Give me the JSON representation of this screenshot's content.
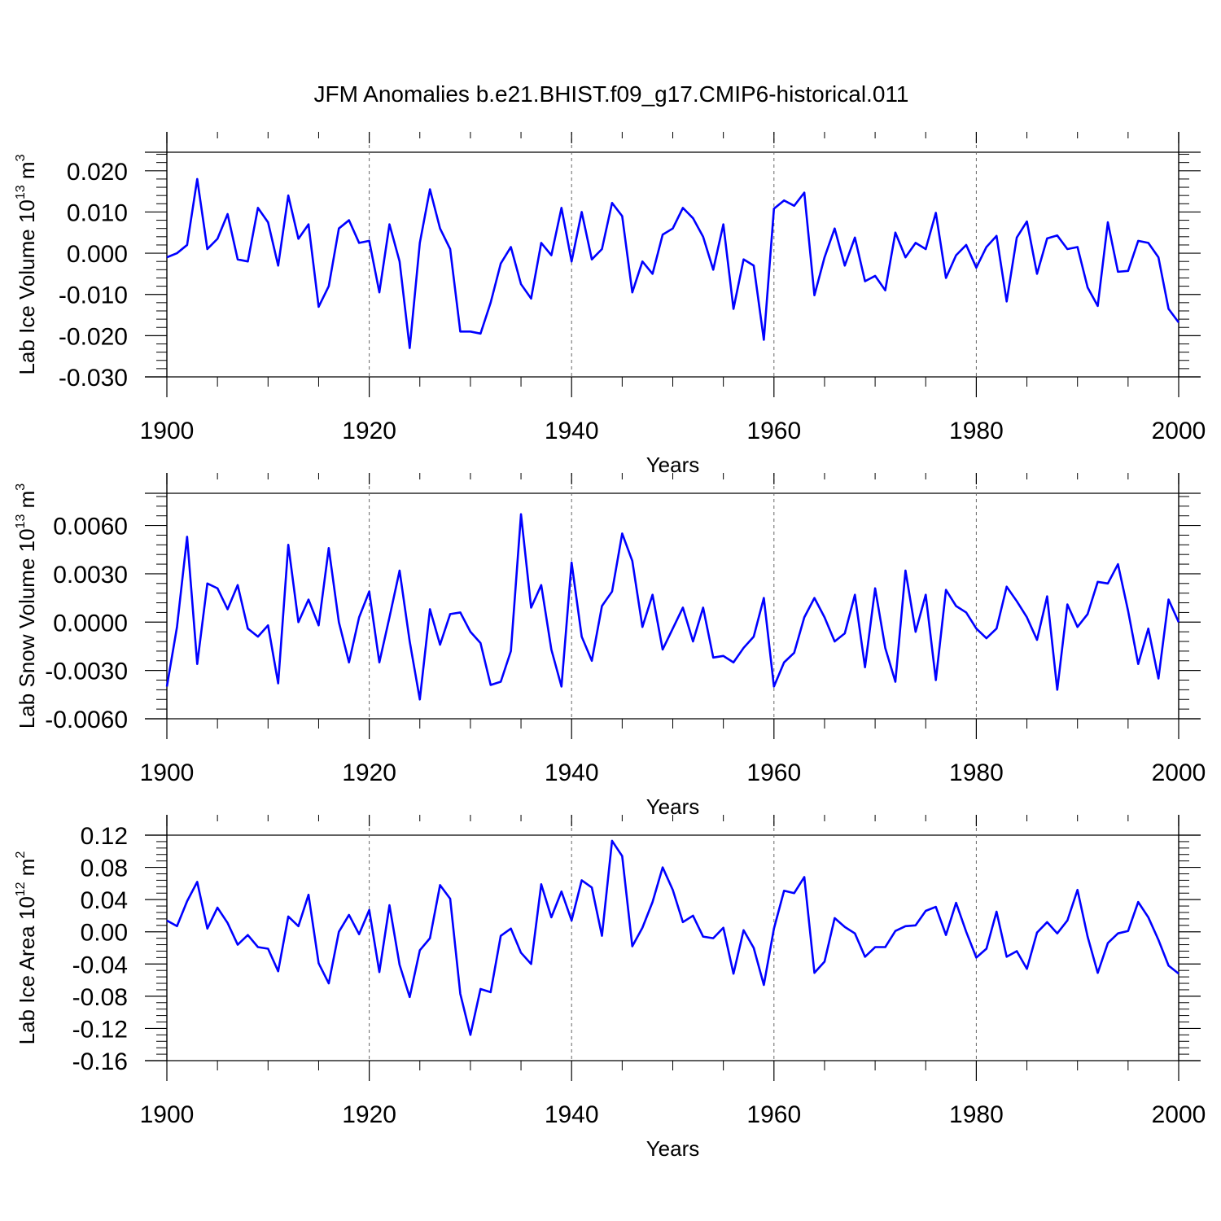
{
  "title": "JFM Anomalies b.e21.BHIST.f09_g17.CMIP6-historical.011",
  "chart_data": [
    {
      "type": "line",
      "ylabel": {
        "pre": "Lab Ice Volume 10",
        "exp": "13",
        "mid": " m",
        "unit_exp": "3"
      },
      "xlabel": "Years",
      "xlim": [
        1900,
        2000
      ],
      "ylim": [
        -0.03,
        0.0245
      ],
      "yticks": [
        -0.03,
        -0.02,
        -0.01,
        0.0,
        0.01,
        0.02
      ],
      "ytick_labels": [
        "-0.030",
        "-0.020",
        "-0.010",
        "0.000",
        "0.010",
        "0.020"
      ],
      "yminor_step": 0.002,
      "xticks": [
        1900,
        1920,
        1940,
        1960,
        1980,
        2000
      ],
      "xtick_labels": [
        "1900",
        "1920",
        "1940",
        "1960",
        "1980",
        "2000"
      ],
      "xminor_step": 5,
      "vlines": [
        1920,
        1940,
        1960,
        1980
      ],
      "series": [
        {
          "name": "Lab Ice Volume",
          "color": "#0000ff",
          "x0": 1900,
          "values": [
            -0.001,
            0.0,
            0.002,
            0.018,
            0.001,
            0.0035,
            0.0095,
            -0.0015,
            -0.002,
            0.011,
            0.0075,
            -0.003,
            0.014,
            0.0035,
            0.007,
            -0.013,
            -0.008,
            0.006,
            0.008,
            0.0025,
            0.003,
            -0.0095,
            0.007,
            -0.002,
            -0.023,
            0.0025,
            0.0155,
            0.006,
            0.001,
            -0.019,
            -0.019,
            -0.0195,
            -0.012,
            -0.0025,
            0.0015,
            -0.0075,
            -0.011,
            0.0025,
            -0.0005,
            0.011,
            -0.002,
            0.01,
            -0.0015,
            0.001,
            0.0122,
            0.009,
            -0.0095,
            -0.002,
            -0.005,
            0.0045,
            0.006,
            0.011,
            0.0085,
            0.004,
            -0.004,
            0.007,
            -0.0135,
            -0.0015,
            -0.003,
            -0.021,
            0.0108,
            0.0128,
            0.0115,
            0.0147,
            -0.0102,
            -0.001,
            0.006,
            -0.003,
            0.0038,
            -0.0068,
            -0.0055,
            -0.009,
            0.005,
            -0.001,
            0.0025,
            0.001,
            0.0098,
            -0.006,
            -0.0005,
            0.002,
            -0.0035,
            0.0015,
            0.0042,
            -0.0117,
            0.0038,
            0.0077,
            -0.005,
            0.0036,
            0.0043,
            0.001,
            0.0015,
            -0.0083,
            -0.0128,
            0.0075,
            -0.0045,
            -0.0043,
            0.003,
            0.0025,
            -0.001,
            -0.0135,
            -0.0168
          ]
        }
      ]
    },
    {
      "type": "line",
      "ylabel": {
        "pre": "Lab Snow Volume 10",
        "exp": "13",
        "mid": " m",
        "unit_exp": "3"
      },
      "xlabel": "Years",
      "xlim": [
        1900,
        2000
      ],
      "ylim": [
        -0.006,
        0.008
      ],
      "yticks": [
        -0.006,
        -0.003,
        0.0,
        0.003,
        0.006
      ],
      "ytick_labels": [
        "-0.0060",
        "-0.0030",
        "0.0000",
        "0.0030",
        "0.0060"
      ],
      "yminor_step": 0.0006,
      "xticks": [
        1900,
        1920,
        1940,
        1960,
        1980,
        2000
      ],
      "xtick_labels": [
        "1900",
        "1920",
        "1940",
        "1960",
        "1980",
        "2000"
      ],
      "xminor_step": 5,
      "vlines": [
        1920,
        1940,
        1960,
        1980
      ],
      "series": [
        {
          "name": "Lab Snow Volume",
          "color": "#0000ff",
          "x0": 1900,
          "values": [
            -0.004,
            -0.0003,
            0.0053,
            -0.0026,
            0.0024,
            0.0021,
            0.0008,
            0.0023,
            -0.0004,
            -0.0009,
            -0.0002,
            -0.0038,
            0.0048,
            0.0,
            0.0014,
            -0.0002,
            0.0046,
            0.0,
            -0.0025,
            0.0003,
            0.0019,
            -0.0025,
            0.0003,
            0.0032,
            -0.0012,
            -0.0048,
            0.0008,
            -0.0014,
            0.0005,
            0.0006,
            -0.0006,
            -0.0013,
            -0.0039,
            -0.0037,
            -0.0018,
            0.0067,
            0.0009,
            0.0023,
            -0.0017,
            -0.004,
            0.0037,
            -0.0009,
            -0.0024,
            0.001,
            0.0019,
            0.0055,
            0.0038,
            -0.0003,
            0.0017,
            -0.0017,
            -0.0004,
            0.0009,
            -0.0012,
            0.0009,
            -0.0022,
            -0.0021,
            -0.0025,
            -0.0016,
            -0.0009,
            0.0015,
            -0.004,
            -0.0025,
            -0.0019,
            0.0003,
            0.0015,
            0.0003,
            -0.0012,
            -0.0007,
            0.0017,
            -0.0028,
            0.0021,
            -0.0016,
            -0.0037,
            0.0032,
            -0.0006,
            0.0017,
            -0.0036,
            0.002,
            0.001,
            0.0006,
            -0.0004,
            -0.001,
            -0.0004,
            0.0022,
            0.0013,
            0.0003,
            -0.0011,
            0.0016,
            -0.0042,
            0.0011,
            -0.0003,
            0.0005,
            0.0025,
            0.0024,
            0.0036,
            0.0007,
            -0.0026,
            -0.0004,
            -0.0035,
            0.0014,
            0.0
          ]
        }
      ]
    },
    {
      "type": "line",
      "ylabel": {
        "pre": "Lab Ice Area 10",
        "exp": "12",
        "mid": " m",
        "unit_exp": "2"
      },
      "xlabel": "Years",
      "xlim": [
        1900,
        2000
      ],
      "ylim": [
        -0.16,
        0.12
      ],
      "yticks": [
        -0.16,
        -0.12,
        -0.08,
        -0.04,
        0.0,
        0.04,
        0.08,
        0.12
      ],
      "ytick_labels": [
        "-0.16",
        "-0.12",
        "-0.08",
        "-0.04",
        "0.00",
        "0.04",
        "0.08",
        "0.12"
      ],
      "yminor_step": 0.008,
      "xticks": [
        1900,
        1920,
        1940,
        1960,
        1980,
        2000
      ],
      "xtick_labels": [
        "1900",
        "1920",
        "1940",
        "1960",
        "1980",
        "2000"
      ],
      "xminor_step": 5,
      "vlines": [
        1920,
        1940,
        1960,
        1980
      ],
      "series": [
        {
          "name": "Lab Ice Area",
          "color": "#0000ff",
          "x0": 1900,
          "values": [
            0.014,
            0.007,
            0.038,
            0.062,
            0.004,
            0.03,
            0.011,
            -0.016,
            -0.004,
            -0.019,
            -0.021,
            -0.049,
            0.019,
            0.007,
            0.046,
            -0.039,
            -0.064,
            0.0,
            0.021,
            -0.003,
            0.027,
            -0.05,
            0.033,
            -0.041,
            -0.081,
            -0.023,
            -0.008,
            0.058,
            0.041,
            -0.077,
            -0.128,
            -0.071,
            -0.075,
            -0.005,
            0.004,
            -0.026,
            -0.04,
            0.059,
            0.018,
            0.05,
            0.014,
            0.064,
            0.055,
            -0.005,
            0.113,
            0.094,
            -0.018,
            0.005,
            0.037,
            0.08,
            0.052,
            0.012,
            0.02,
            -0.006,
            -0.008,
            0.005,
            -0.052,
            0.002,
            -0.02,
            -0.066,
            0.004,
            0.051,
            0.048,
            0.068,
            -0.051,
            -0.037,
            0.017,
            0.006,
            -0.002,
            -0.031,
            -0.019,
            -0.019,
            0.001,
            0.007,
            0.008,
            0.026,
            0.031,
            -0.004,
            0.036,
            0.0,
            -0.032,
            -0.021,
            0.025,
            -0.031,
            -0.024,
            -0.046,
            -0.001,
            0.012,
            -0.002,
            0.014,
            0.052,
            -0.006,
            -0.051,
            -0.014,
            -0.002,
            0.001,
            0.037,
            0.018,
            -0.01,
            -0.042,
            -0.052
          ]
        }
      ]
    }
  ]
}
